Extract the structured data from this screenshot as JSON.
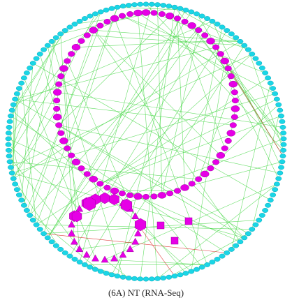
{
  "figure": {
    "caption": "(6A) NT (RNA-Seq)"
  },
  "colors": {
    "outer_nodes": "#1ad6e6",
    "outer_node_border": "#0aa7b8",
    "inner_nodes": "#e600e6",
    "inner_node_border": "#a000a0",
    "edge_green": "#4cd94c",
    "edge_red": "#e04040",
    "label_text": "#222222"
  },
  "legend": {
    "shapes": [
      "circle",
      "ellipse",
      "triangle",
      "hexagon",
      "square"
    ]
  }
}
